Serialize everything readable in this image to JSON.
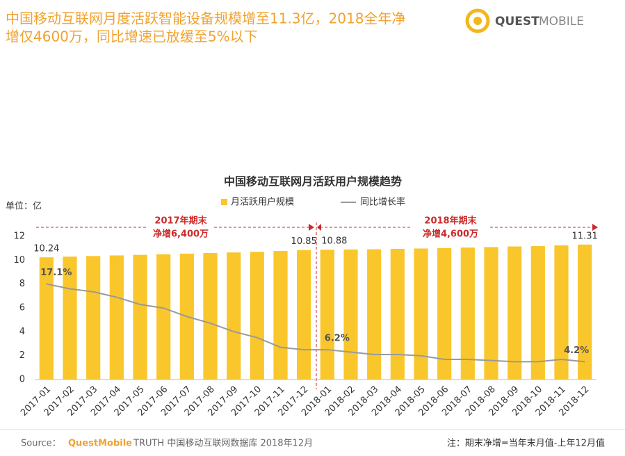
{
  "header": {
    "title_lines": [
      "中国移动互联网月度活跃智能设备规模增至11.3亿，2018全年净",
      "增仅4600万，同比增速已放缓至5%以下"
    ],
    "logo": {
      "bold": "QUEST",
      "light": "MOBILE"
    }
  },
  "chart_data": {
    "type": "bar_line",
    "title": "中国移动互联网月活跃用户规模趋势",
    "unit_label": "单位：亿",
    "categories": [
      "2017-01",
      "2017-02",
      "2017-03",
      "2017-04",
      "2017-05",
      "2017-06",
      "2017-07",
      "2017-08",
      "2017-09",
      "2017-10",
      "2017-11",
      "2017-12",
      "2018-01",
      "2018-02",
      "2018-03",
      "2018-04",
      "2018-05",
      "2018-06",
      "2018-07",
      "2018-08",
      "2018-09",
      "2018-10",
      "2018-11",
      "2018-12"
    ],
    "series": [
      {
        "name": "月活跃用户规模",
        "type": "bar",
        "color": "#f9c62c",
        "values": [
          10.24,
          10.3,
          10.35,
          10.4,
          10.45,
          10.5,
          10.55,
          10.6,
          10.65,
          10.7,
          10.78,
          10.85,
          10.88,
          10.9,
          10.92,
          10.95,
          10.98,
          11.02,
          11.06,
          11.1,
          11.15,
          11.18,
          11.24,
          11.31
        ],
        "value_labels": [
          "10.24",
          null,
          null,
          null,
          null,
          null,
          null,
          null,
          null,
          null,
          null,
          "10.85",
          "10.88",
          null,
          null,
          null,
          null,
          null,
          null,
          null,
          null,
          null,
          null,
          "11.31"
        ]
      },
      {
        "name": "同比增长率",
        "type": "line",
        "axis": "y2",
        "color": "#9a9a9a",
        "values": [
          17.1,
          16.3,
          15.8,
          14.9,
          13.7,
          13.1,
          11.7,
          10.6,
          9.2,
          8.2,
          6.6,
          6.2,
          6.2,
          5.8,
          5.4,
          5.4,
          5.2,
          4.6,
          4.6,
          4.4,
          4.2,
          4.2,
          4.6,
          4.2
        ],
        "value_labels": [
          "17.1%",
          null,
          null,
          null,
          null,
          null,
          null,
          null,
          null,
          null,
          null,
          null,
          "6.2%",
          null,
          null,
          null,
          null,
          null,
          null,
          null,
          null,
          null,
          null,
          "4.2%"
        ]
      }
    ],
    "ylim": [
      0,
      12
    ],
    "yticks": [
      0,
      2,
      4,
      6,
      8,
      10,
      12
    ],
    "y2lim": [
      1.25,
      25
    ],
    "annotations": [
      [
        "2017年期末",
        "净增6,400万"
      ],
      [
        "2018年期末",
        "净增4,600万"
      ]
    ],
    "source": {
      "prefix": "Source：",
      "brand": "QuestMobile",
      "rest": "TRUTH 中国移动互联网数据库 2018年12月"
    },
    "note": "注：期末净增=当年末月值-上年12月值"
  }
}
